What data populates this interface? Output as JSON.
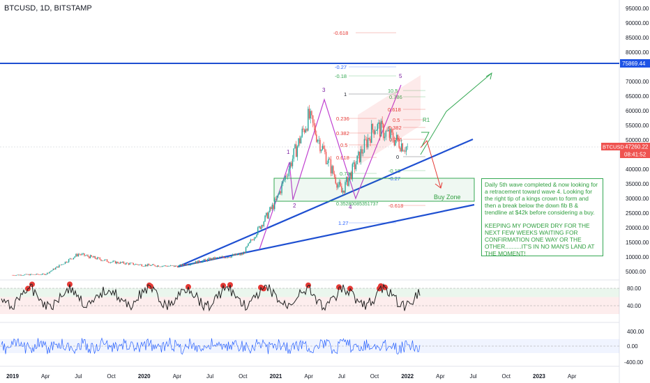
{
  "symbol": "BTCUSD, 1D, BITSTAMP",
  "price": {
    "last": "47260.22",
    "countdown": "08:41:52",
    "symbol_tag": "BTCUSD",
    "hline_value": "75869.44",
    "ticks": [
      "95000.00",
      "90000.00",
      "85000.00",
      "80000.00",
      "70000.00",
      "65000.00",
      "60000.00",
      "55000.00",
      "50000.00",
      "40000.00",
      "35000.00",
      "30000.00",
      "25000.00",
      "20000.00",
      "15000.00",
      "10000.00",
      "5000.00"
    ]
  },
  "time_axis": [
    "2019",
    "Apr",
    "Jul",
    "Oct",
    "2020",
    "Apr",
    "Jul",
    "Oct",
    "2021",
    "Apr",
    "Jul",
    "Oct",
    "2022",
    "Apr",
    "Jul",
    "Oct",
    "2023",
    "Apr"
  ],
  "fib_labels": [
    "-0.618",
    "-0.27",
    "-0.18",
    "1",
    "0.786",
    "0.618",
    "0.5",
    "0.382",
    "0.236",
    "0",
    "0.236",
    "0.382",
    "0.5",
    "0.618",
    "0.786",
    "1",
    "-0.18",
    "-0.27",
    "-0.618",
    "1.27"
  ],
  "fib_extra": [
    "0.5",
    "0.35280085351737"
  ],
  "wave_labels": [
    "1",
    "2",
    "3",
    "4",
    "5",
    "R1"
  ],
  "buy_zone_label": "Buy Zone",
  "note": {
    "p1": "Daily 5th wave completed & now looking for a retracement toward wave 4.  Looking for the right tip of a kings crown to form and then a break below the down fib B & trendline at $42k before considering a buy.",
    "p2": "KEEPING MY POWDER DRY FOR THE NEXT FEW WEEKS WAITING FOR CONFIRMATION ONE WAY OR THE OTHER..........IT'S IN NO MAN'S LAND AT THE MOMENT!"
  },
  "osc1_ticks": [
    "80.00",
    "40.00"
  ],
  "osc2_ticks": [
    "400.00",
    "0.00",
    "-400.00"
  ],
  "colors": {
    "price": "#2962ff",
    "up": "#26a69a",
    "down": "#ef5350",
    "trend": "#1e4fd1",
    "note": "#34a853",
    "osc": "#2962ff"
  },
  "chart_data": {
    "type": "line",
    "title": "BTCUSD, 1D, BITSTAMP",
    "x": [
      "2019-01",
      "2019-04",
      "2019-07",
      "2019-10",
      "2020-01",
      "2020-04",
      "2020-07",
      "2020-10",
      "2021-01",
      "2021-04",
      "2021-07",
      "2021-10",
      "2022-01"
    ],
    "series": [
      {
        "name": "BTCUSD",
        "values": [
          3800,
          4100,
          11000,
          8300,
          7200,
          6800,
          9200,
          11000,
          29000,
          58000,
          32000,
          55000,
          47260
        ]
      }
    ],
    "ylim": [
      0,
      97000
    ]
  }
}
